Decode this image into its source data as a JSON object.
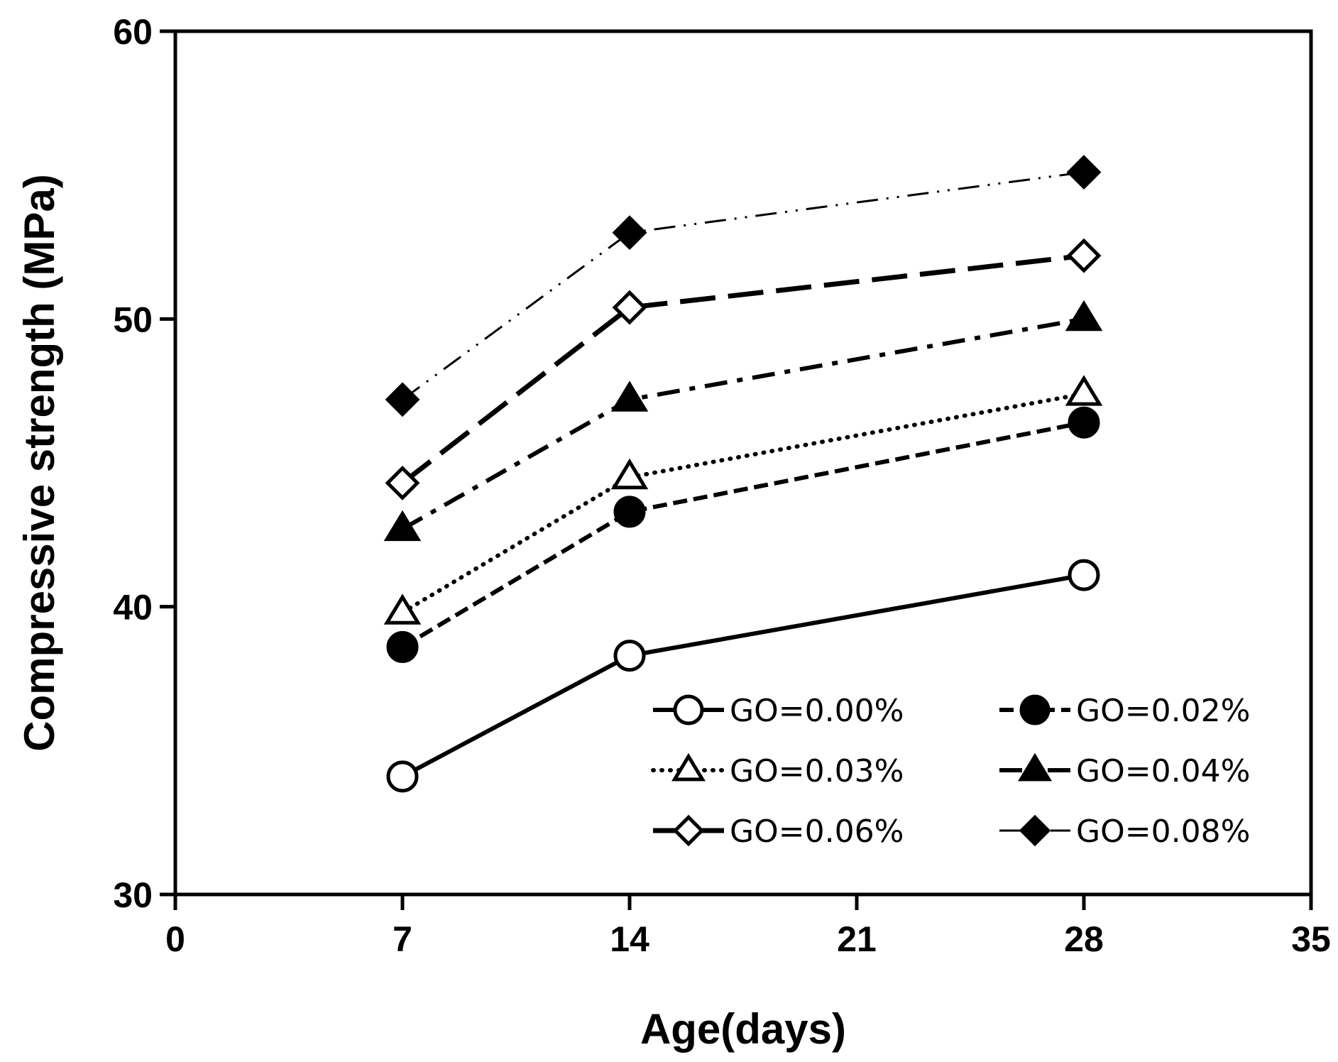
{
  "chart_data": {
    "type": "line",
    "title": "",
    "xlabel": "Age(days)",
    "ylabel": "Compressive strength (MPa)",
    "xlim": [
      0,
      35
    ],
    "ylim": [
      30,
      60
    ],
    "xticks": [
      0,
      7,
      14,
      21,
      28,
      35
    ],
    "yticks": [
      30,
      40,
      50,
      60
    ],
    "grid": false,
    "legend_position": "bottom-right",
    "x": [
      7,
      14,
      28
    ],
    "series": [
      {
        "name": "GO=0.00%",
        "values": [
          34.1,
          38.3,
          41.1
        ],
        "marker": "circle",
        "filled": false,
        "dash": "solid"
      },
      {
        "name": "GO=0.02%",
        "values": [
          38.6,
          43.3,
          46.4
        ],
        "marker": "circle",
        "filled": true,
        "dash": "dash"
      },
      {
        "name": "GO=0.03%",
        "values": [
          39.8,
          44.5,
          47.4
        ],
        "marker": "triangle",
        "filled": false,
        "dash": "dot"
      },
      {
        "name": "GO=0.04%",
        "values": [
          42.7,
          47.2,
          50.0
        ],
        "marker": "triangle",
        "filled": true,
        "dash": "dashdot"
      },
      {
        "name": "GO=0.06%",
        "values": [
          44.3,
          50.4,
          52.2
        ],
        "marker": "diamond",
        "filled": false,
        "dash": "longdash"
      },
      {
        "name": "GO=0.08%",
        "values": [
          47.2,
          53.0,
          55.1
        ],
        "marker": "diamond",
        "filled": true,
        "dash": "dashdotdot"
      }
    ]
  }
}
